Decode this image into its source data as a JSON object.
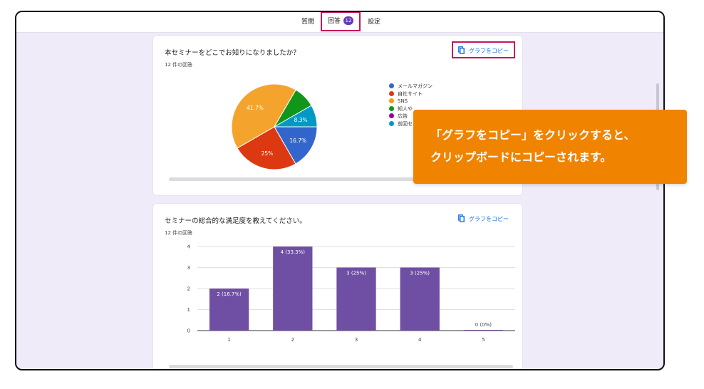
{
  "tabs": {
    "questions_label": "質問",
    "responses_label": "回答",
    "responses_count": "12",
    "settings_label": "設定"
  },
  "question1": {
    "title": "本セミナーをどこでお知りになりましたか？",
    "response_count": "12 件の回答",
    "copy_label": "グラフをコピー",
    "legend": [
      {
        "label": "メールマガジン",
        "color": "#3366cc"
      },
      {
        "label": "自社サイト",
        "color": "#dc3912"
      },
      {
        "label": "SNS",
        "color": "#ff9900"
      },
      {
        "label": "知人や",
        "color": "#109618"
      },
      {
        "label": "広告",
        "color": "#990099"
      },
      {
        "label": "前回セ",
        "color": "#0099c6"
      }
    ]
  },
  "question2": {
    "title": "セミナーの総合的な満足度を教えてください。",
    "response_count": "12 件の回答",
    "copy_label": "グラフをコピー"
  },
  "callout": {
    "line1": "「グラフをコピー」をクリックすると、",
    "line2": "クリップボードにコピーされます。"
  },
  "chart_data": [
    {
      "type": "pie",
      "categories": [
        "メールマガジン",
        "自社サイト",
        "SNS",
        "知人や",
        "広告",
        "前回セ"
      ],
      "values": [
        16.7,
        25,
        41.7,
        8.3,
        0,
        8.3
      ],
      "data_labels": [
        "16.7%",
        "25%",
        "41.7%",
        "",
        "",
        "8.3%"
      ],
      "colors": [
        "#3366cc",
        "#dc3912",
        "#f4a42c",
        "#109618",
        "#990099",
        "#0099c6"
      ]
    },
    {
      "type": "bar",
      "categories": [
        "1",
        "2",
        "3",
        "4",
        "5"
      ],
      "values": [
        2,
        4,
        3,
        3,
        0
      ],
      "data_labels": [
        "2 (16.7%)",
        "4 (33.3%)",
        "3 (25%)",
        "3 (25%)",
        "0 (0%)"
      ],
      "y_ticks": [
        "0",
        "1",
        "2",
        "3",
        "4"
      ],
      "ylim": [
        0,
        4
      ],
      "color": "#6f4fa3",
      "grid": true
    }
  ]
}
